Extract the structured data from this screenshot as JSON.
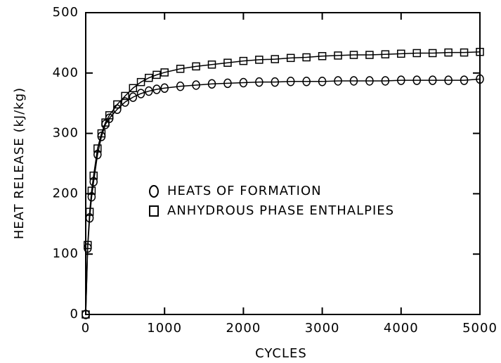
{
  "chart_data": {
    "type": "line",
    "x_label": "CYCLES",
    "y_label": "HEAT RELEASE (kJ/kg)",
    "x": [
      0,
      25,
      50,
      75,
      100,
      150,
      200,
      250,
      300,
      400,
      500,
      600,
      700,
      800,
      900,
      1000,
      1200,
      1400,
      1600,
      1800,
      2000,
      2200,
      2400,
      2600,
      2800,
      3000,
      3200,
      3400,
      3600,
      3800,
      4000,
      4200,
      4400,
      4600,
      4800,
      5000
    ],
    "series": [
      {
        "name": "HEATS OF FORMATION",
        "color": "#000000",
        "marker": "circle",
        "values": [
          0,
          110,
          160,
          195,
          220,
          265,
          295,
          315,
          325,
          340,
          352,
          360,
          366,
          370,
          373,
          375,
          378,
          380,
          382,
          383,
          384,
          385,
          385,
          386,
          386,
          386,
          387,
          387,
          387,
          387,
          388,
          388,
          388,
          388,
          388,
          390
        ]
      },
      {
        "name": "ANHYDROUS PHASE ENTHALPIES",
        "color": "#000000",
        "marker": "square",
        "values": [
          0,
          115,
          170,
          205,
          230,
          275,
          300,
          318,
          330,
          348,
          362,
          375,
          385,
          392,
          397,
          401,
          407,
          411,
          414,
          417,
          420,
          422,
          423,
          425,
          426,
          428,
          429,
          430,
          430,
          431,
          432,
          433,
          433,
          434,
          434,
          435
        ]
      }
    ],
    "xlim": [
      0,
      5000
    ],
    "xticks": [
      0,
      1000,
      2000,
      3000,
      4000,
      5000
    ],
    "ylim": [
      0,
      500
    ],
    "yticks": [
      0,
      100,
      200,
      300,
      400,
      500
    ],
    "grid": false
  }
}
